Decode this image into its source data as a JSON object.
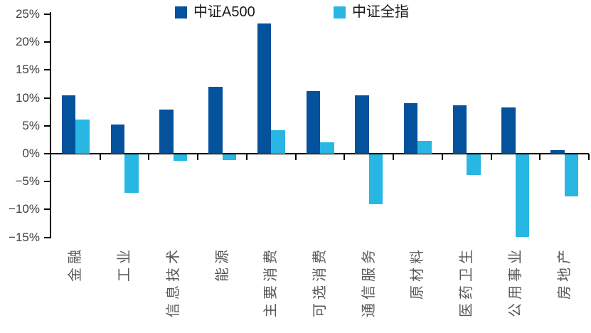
{
  "chart_data": {
    "type": "bar",
    "title": "",
    "xlabel": "",
    "ylabel": "",
    "categories": [
      "金融",
      "工业",
      "信息技术",
      "能源",
      "主要消费",
      "可选消费",
      "通信服务",
      "原材料",
      "医药卫生",
      "公用事业",
      "房地产"
    ],
    "series": [
      {
        "name": "中证A500",
        "color": "#04519c",
        "values": [
          10.4,
          5.2,
          7.9,
          12.0,
          23.4,
          11.2,
          10.5,
          9.1,
          8.7,
          8.3,
          0.6
        ]
      },
      {
        "name": "中证全指",
        "color": "#28b7e3",
        "values": [
          6.1,
          -7.0,
          -1.3,
          -1.2,
          4.2,
          2.0,
          -9.0,
          2.3,
          -3.8,
          -14.9,
          -7.6
        ]
      }
    ],
    "ylim": [
      -15,
      25
    ],
    "y_ticks": [
      {
        "label": "25%",
        "value": 25
      },
      {
        "label": "20%",
        "value": 20
      },
      {
        "label": "15%",
        "value": 15
      },
      {
        "label": "10%",
        "value": 10
      },
      {
        "label": "5%",
        "value": 5
      },
      {
        "label": "0%",
        "value": 0
      },
      {
        "label": "−5%",
        "value": -5
      },
      {
        "label": "−10%",
        "value": -10
      },
      {
        "label": "−15%",
        "value": -15
      }
    ],
    "grid": false,
    "legend_position": "top",
    "axis_color": "#000000",
    "tick_label_color": "#404040",
    "category_label_color": "#595959"
  }
}
